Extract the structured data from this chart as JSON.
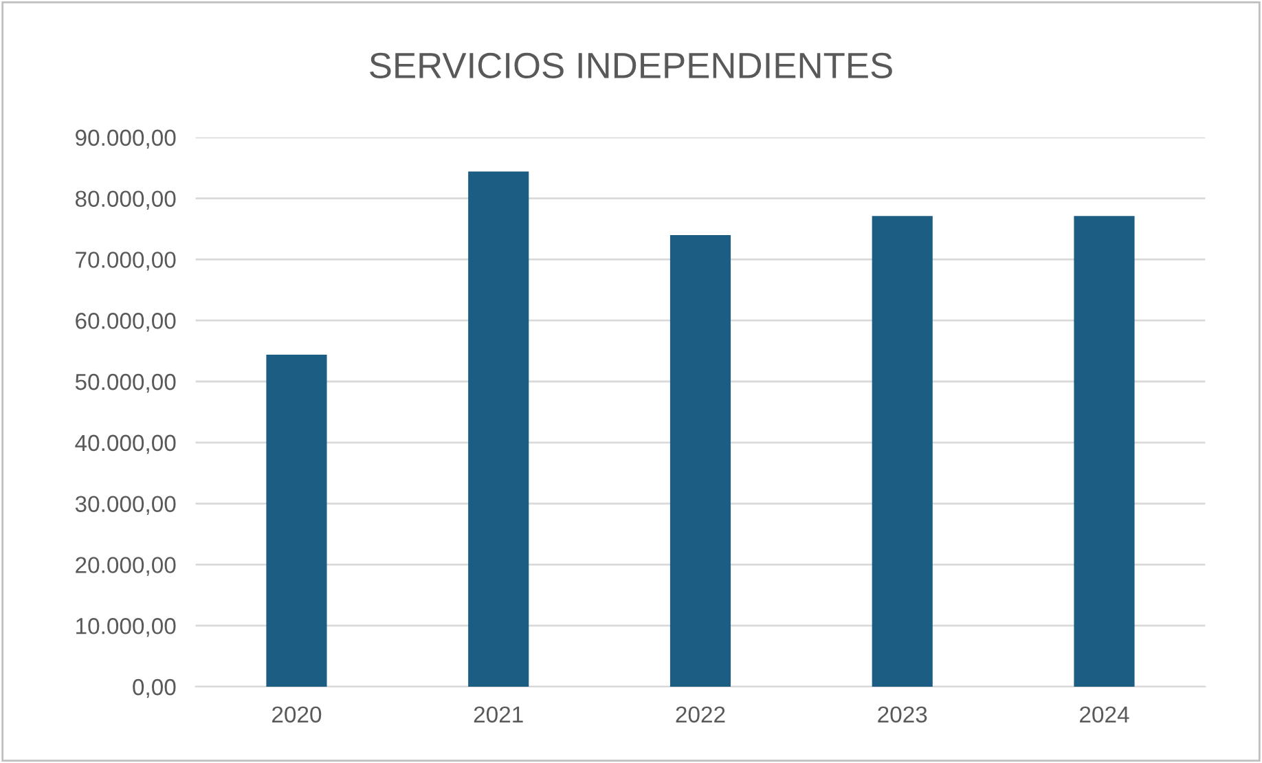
{
  "chart_data": {
    "type": "bar",
    "title": "SERVICIOS INDEPENDIENTES",
    "categories": [
      "2020",
      "2021",
      "2022",
      "2023",
      "2024"
    ],
    "values": [
      54400,
      84400,
      74000,
      77100,
      77100
    ],
    "color": "#1c5d84",
    "ylim": [
      0,
      90000
    ],
    "yticks": [
      {
        "value": 0,
        "label": "0,00"
      },
      {
        "value": 10000,
        "label": "10.000,00"
      },
      {
        "value": 20000,
        "label": "20.000,00"
      },
      {
        "value": 30000,
        "label": "30.000,00"
      },
      {
        "value": 40000,
        "label": "40.000,00"
      },
      {
        "value": 50000,
        "label": "50.000,00"
      },
      {
        "value": 60000,
        "label": "60.000,00"
      },
      {
        "value": 70000,
        "label": "70.000,00"
      },
      {
        "value": 80000,
        "label": "80.000,00"
      },
      {
        "value": 90000,
        "label": "90.000,00"
      }
    ],
    "grid": "y"
  }
}
